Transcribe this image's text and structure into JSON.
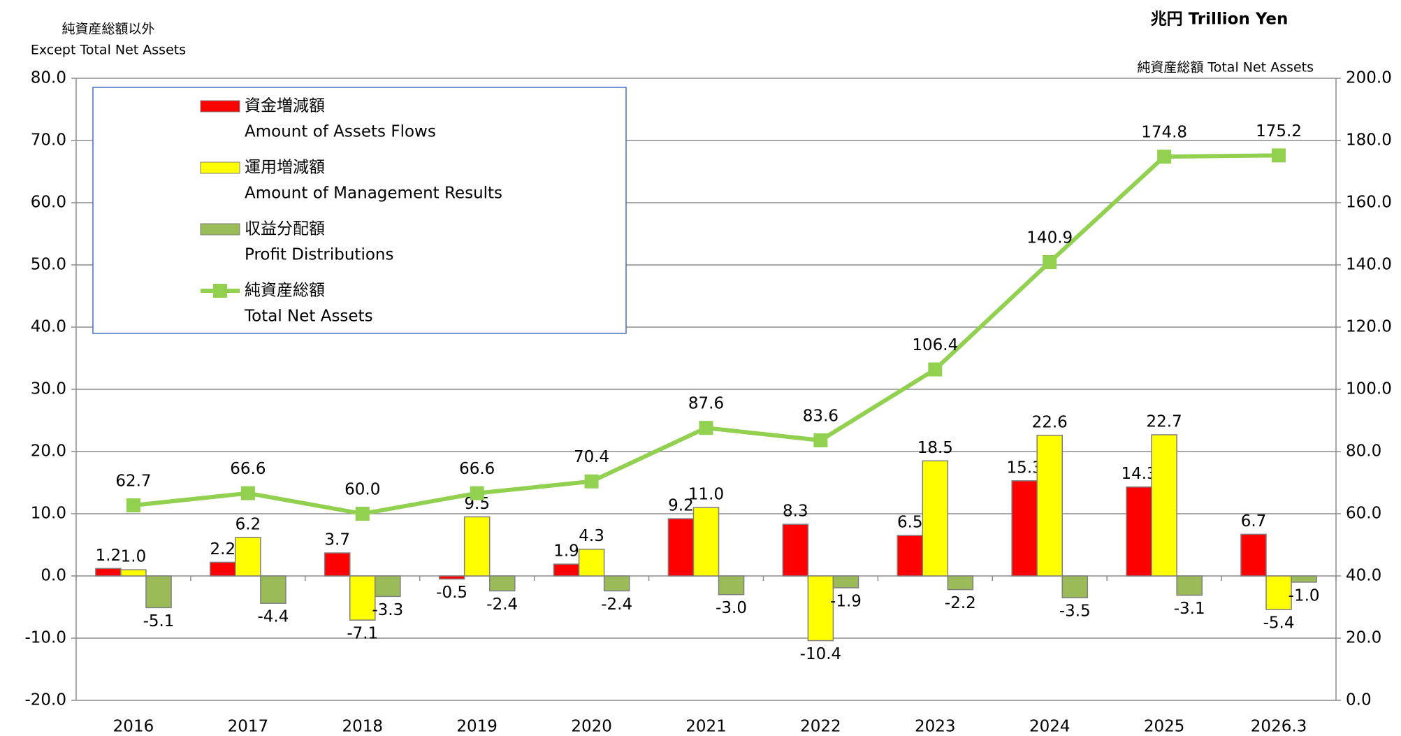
{
  "chart_data": {
    "type": "bar_line",
    "y_label": "純資産総額以外",
    "y_label_en": "Except Total Net Assets",
    "unit_label": "兆円 Trillion Yen",
    "y2_label": "純資産総額 Total Net Assets",
    "categories": [
      "2016",
      "2017",
      "2018",
      "2019",
      "2020",
      "2021",
      "2022",
      "2023",
      "2024",
      "2025",
      "2026.3"
    ],
    "series": [
      {
        "name": "資金増減額",
        "name_en": "Amount of Assets Flows",
        "type": "bar",
        "color": "#ff0000",
        "values": [
          1.2,
          2.2,
          3.7,
          -0.5,
          1.9,
          9.2,
          8.3,
          6.5,
          15.3,
          14.3,
          6.7
        ],
        "value_labels": [
          "1.2",
          "2.2",
          "3.7",
          "-0.5",
          "1.9",
          "9.2",
          "8.3",
          "6.5",
          "15.3",
          "14.3",
          "6.7"
        ]
      },
      {
        "name": "運用増減額",
        "name_en": "Amount of Management Results",
        "type": "bar",
        "color": "#ffff00",
        "values": [
          1.0,
          6.2,
          -7.1,
          9.5,
          4.3,
          11.0,
          -10.4,
          18.5,
          22.6,
          22.7,
          -5.4
        ],
        "value_labels": [
          "1.0",
          "6.2",
          "-7.1",
          "9.5",
          "4.3",
          "11.0",
          "-10.4",
          "18.5",
          "22.6",
          "22.7",
          "-5.4"
        ]
      },
      {
        "name": "収益分配額",
        "name_en": "Profit Distributions",
        "type": "bar",
        "color": "#9bbb59",
        "values": [
          -5.1,
          -4.4,
          -3.3,
          -2.4,
          -2.4,
          -3.0,
          -1.9,
          -2.2,
          -3.5,
          -3.1,
          -1.0
        ],
        "value_labels": [
          "-5.1",
          "-4.4",
          "-3.3",
          "-2.4",
          "-2.4",
          "-3.0",
          "-1.9",
          "-2.2",
          "-3.5",
          "-3.1",
          "-1.0"
        ]
      },
      {
        "name": "純資産総額",
        "name_en": "Total Net Assets",
        "type": "line",
        "axis": "y2",
        "color": "#92d050",
        "values": [
          62.7,
          66.6,
          60.0,
          66.6,
          70.4,
          87.6,
          83.6,
          106.4,
          140.9,
          174.8,
          175.2
        ],
        "value_labels": [
          "62.7",
          "66.6",
          "60.0",
          "66.6",
          "70.4",
          "87.6",
          "83.6",
          "106.4",
          "140.9",
          "174.8",
          "175.2"
        ]
      }
    ],
    "ylim": [
      -20,
      80
    ],
    "yticks": [
      {
        "value": -20,
        "label": "-20.0"
      },
      {
        "value": -10,
        "label": "-10.0"
      },
      {
        "value": 0,
        "label": "0.0"
      },
      {
        "value": 10,
        "label": "10.0"
      },
      {
        "value": 20,
        "label": "20.0"
      },
      {
        "value": 30,
        "label": "30.0"
      },
      {
        "value": 40,
        "label": "40.0"
      },
      {
        "value": 50,
        "label": "50.0"
      },
      {
        "value": 60,
        "label": "60.0"
      },
      {
        "value": 70,
        "label": "70.0"
      },
      {
        "value": 80,
        "label": "80.0"
      }
    ],
    "y2lim": [
      0,
      200
    ],
    "y2ticks": [
      {
        "value": 0,
        "label": "0.0"
      },
      {
        "value": 20,
        "label": "20.0"
      },
      {
        "value": 40,
        "label": "40.0"
      },
      {
        "value": 60,
        "label": "60.0"
      },
      {
        "value": 80,
        "label": "80.0"
      },
      {
        "value": 100,
        "label": "100.0"
      },
      {
        "value": 120,
        "label": "120.0"
      },
      {
        "value": 140,
        "label": "140.0"
      },
      {
        "value": 160,
        "label": "160.0"
      },
      {
        "value": 180,
        "label": "180.0"
      },
      {
        "value": 200,
        "label": "200.0"
      }
    ],
    "grid": true,
    "legend": "upper left"
  }
}
